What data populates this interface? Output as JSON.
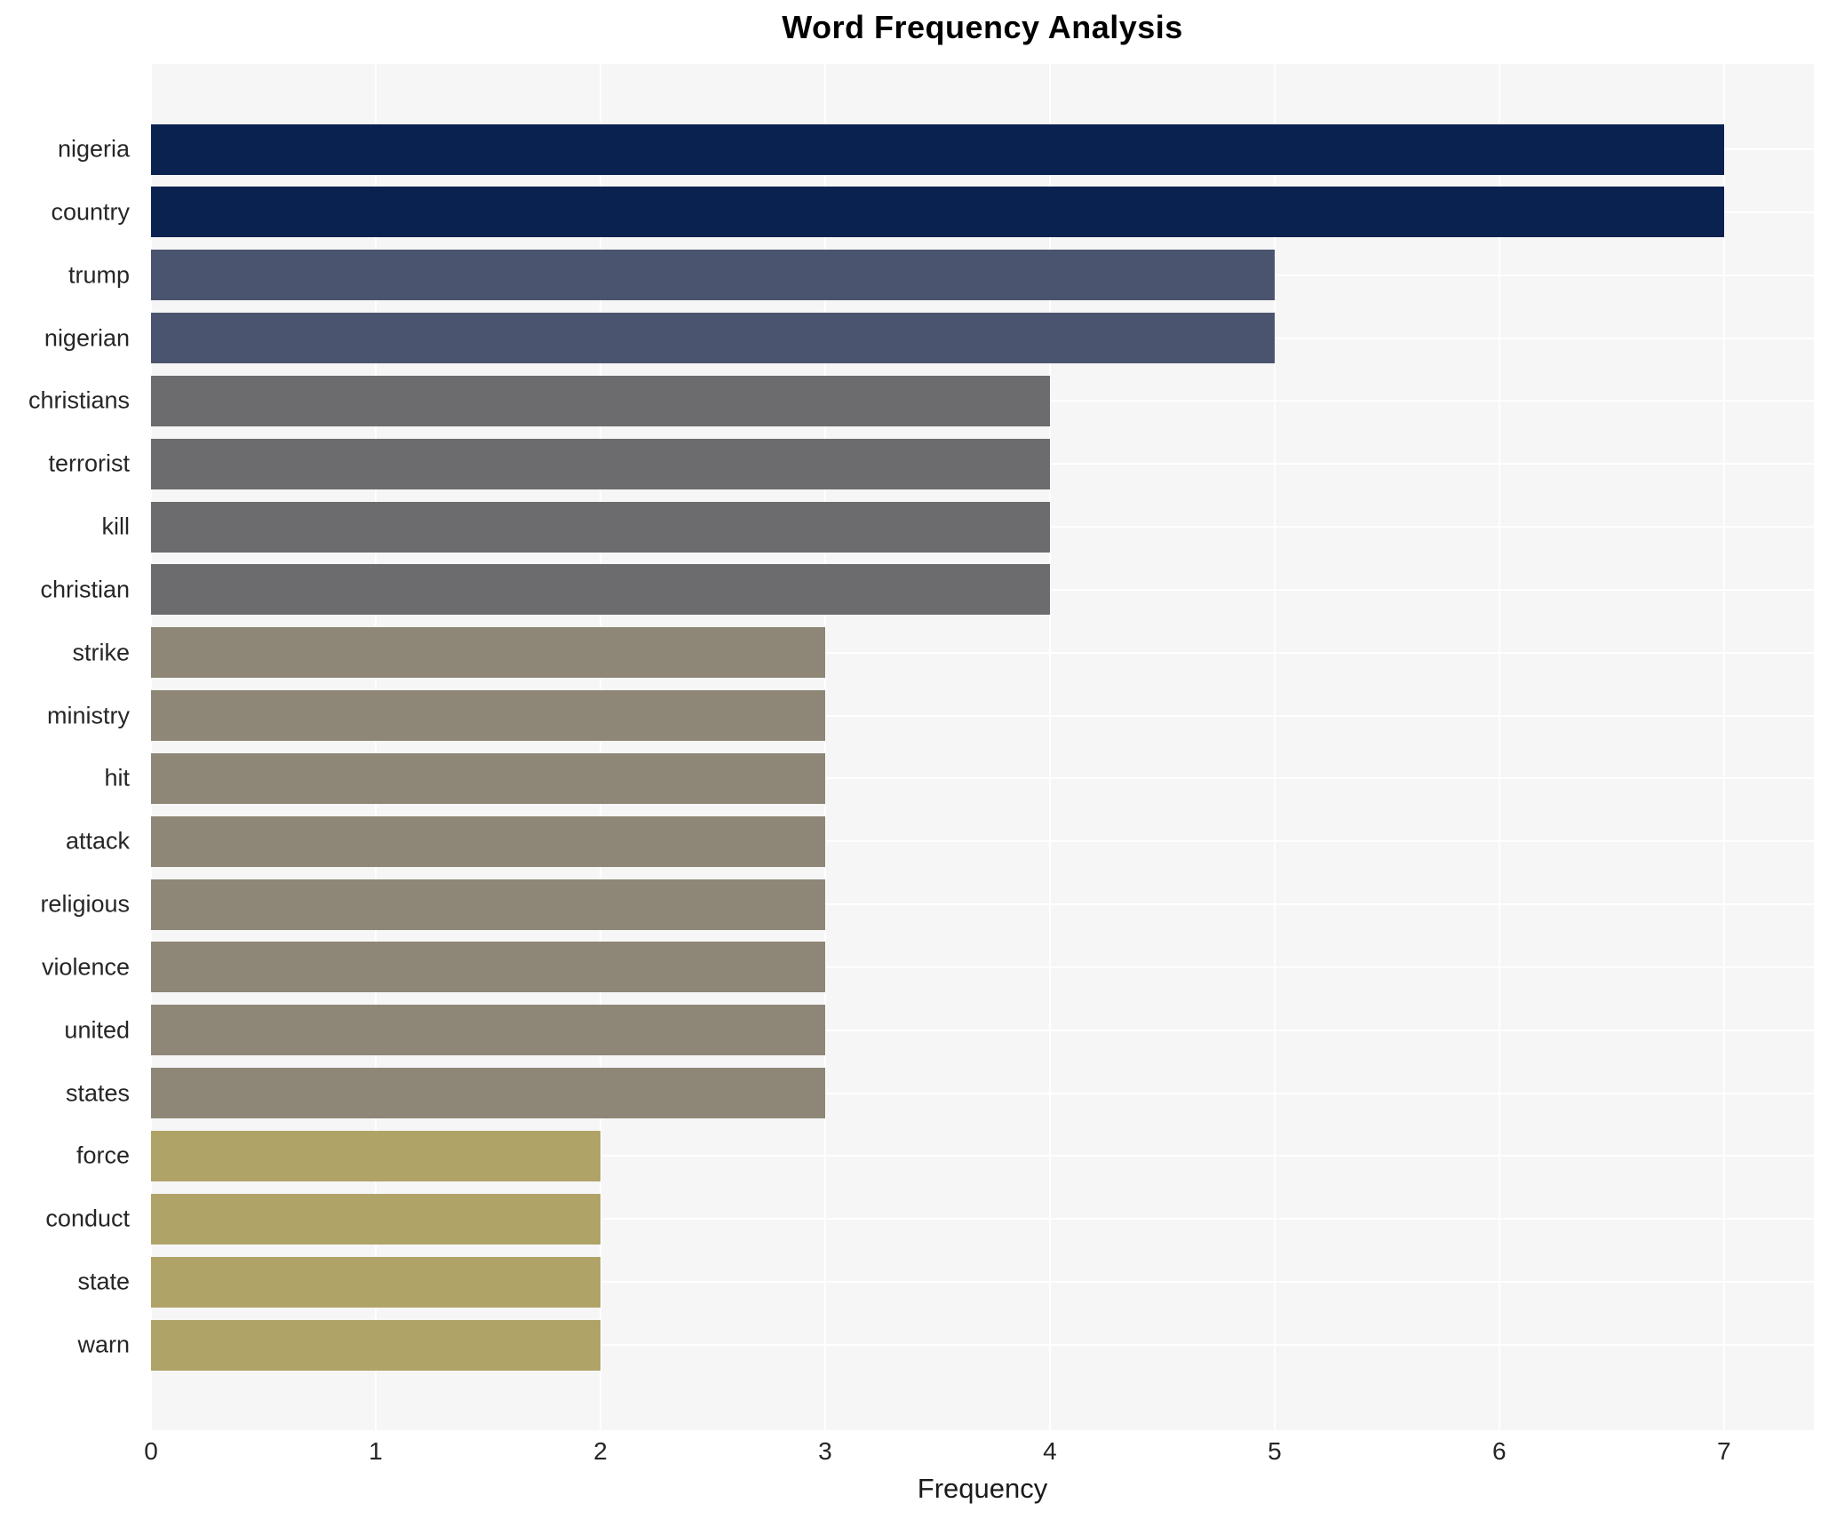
{
  "title": "Word Frequency Analysis",
  "x_axis_label": "Frequency",
  "chart_data": {
    "type": "bar",
    "orientation": "horizontal",
    "title": "Word Frequency Analysis",
    "xlabel": "Frequency",
    "ylabel": "",
    "categories": [
      "nigeria",
      "country",
      "trump",
      "nigerian",
      "christians",
      "terrorist",
      "kill",
      "christian",
      "strike",
      "ministry",
      "hit",
      "attack",
      "religious",
      "violence",
      "united",
      "states",
      "force",
      "conduct",
      "state",
      "warn"
    ],
    "values": [
      7,
      7,
      5,
      5,
      4,
      4,
      4,
      4,
      3,
      3,
      3,
      3,
      3,
      3,
      3,
      3,
      2,
      2,
      2,
      2
    ],
    "bar_colors": [
      "#092250",
      "#092250",
      "#4b546e",
      "#4b546e",
      "#6c6c6f",
      "#6c6c6f",
      "#6c6c6f",
      "#6c6c6f",
      "#8e8777",
      "#8e8777",
      "#8e8777",
      "#8e8777",
      "#8e8777",
      "#8e8777",
      "#8e8777",
      "#8e8777",
      "#b0a367",
      "#b0a367",
      "#b0a367",
      "#b0a367"
    ],
    "x_ticks": [
      0,
      1,
      2,
      3,
      4,
      5,
      6,
      7
    ],
    "xlim": [
      0,
      7.4
    ],
    "grid": true,
    "legend": "none",
    "plot_background": "#f6f6f7",
    "gridline_color": "#ffffff"
  }
}
